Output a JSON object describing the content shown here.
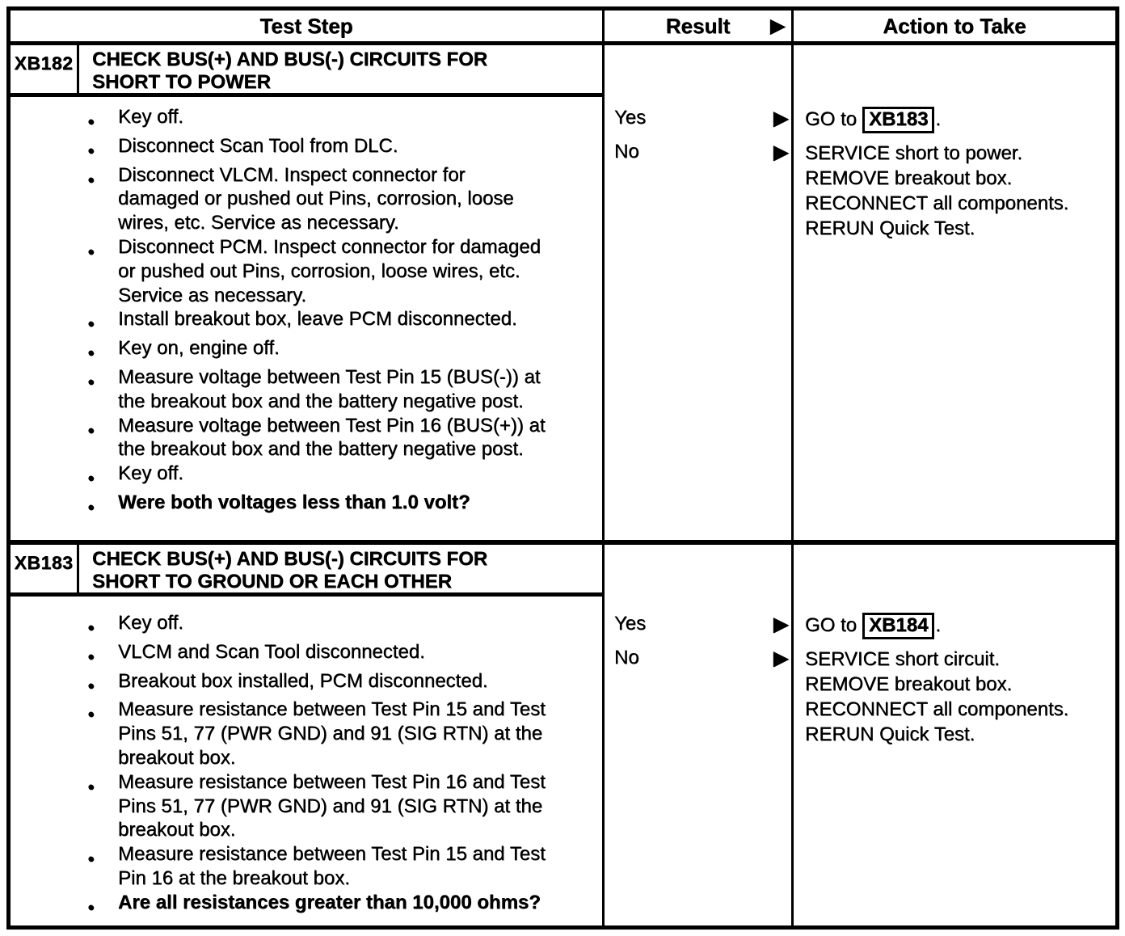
{
  "document": {
    "headers": {
      "test_step": "Test Step",
      "result": "Result",
      "action": "Action to Take"
    },
    "icons": {
      "arrow_right": "▶",
      "bullet": "●"
    },
    "colors": {
      "ink": "#000000",
      "paper": "#ffffff"
    },
    "tests": [
      {
        "id": "XB182",
        "title": "CHECK BUS(+) AND BUS(-) CIRCUITS FOR SHORT TO POWER",
        "bullets": [
          "Key off.",
          "Disconnect Scan Tool from DLC.",
          "Disconnect VLCM. Inspect connector for damaged or pushed out Pins, corrosion, loose wires, etc. Service as necessary.",
          "Disconnect PCM. Inspect connector for damaged or pushed out Pins, corrosion, loose wires, etc. Service as necessary.",
          "Install breakout box, leave PCM disconnected.",
          "Key on, engine off.",
          "Measure voltage between Test Pin 15 (BUS(-)) at the breakout box and the battery negative post.",
          "Measure voltage between Test Pin 16 (BUS(+)) at the breakout box and the battery negative post.",
          "Key off.",
          "Were both voltages less than 1.0 volt?"
        ],
        "results": {
          "yes": "Yes",
          "no": "No"
        },
        "action_yes": {
          "prefix": "GO to",
          "target": "XB183",
          "suffix": "."
        },
        "action_no_lines": [
          "SERVICE short to power.",
          "REMOVE breakout box.",
          "RECONNECT all components.",
          "RERUN Quick Test."
        ]
      },
      {
        "id": "XB183",
        "title": "CHECK BUS(+) AND BUS(-) CIRCUITS FOR SHORT TO GROUND OR EACH OTHER",
        "bullets": [
          "Key off.",
          "VLCM and Scan Tool disconnected.",
          "Breakout box installed, PCM disconnected.",
          "Measure resistance between Test Pin 15 and Test Pins 51, 77 (PWR GND) and 91 (SIG RTN) at the breakout box.",
          "Measure resistance between Test Pin 16 and Test Pins 51, 77 (PWR GND) and 91 (SIG RTN) at the breakout box.",
          "Measure resistance between Test Pin 15 and Test Pin 16 at the breakout box.",
          "Are all resistances greater than 10,000 ohms?"
        ],
        "results": {
          "yes": "Yes",
          "no": "No"
        },
        "action_yes": {
          "prefix": "GO to",
          "target": "XB184",
          "suffix": "."
        },
        "action_no_lines": [
          "SERVICE short circuit.",
          "REMOVE breakout box.",
          "RECONNECT all components.",
          "RERUN Quick Test."
        ]
      }
    ]
  }
}
